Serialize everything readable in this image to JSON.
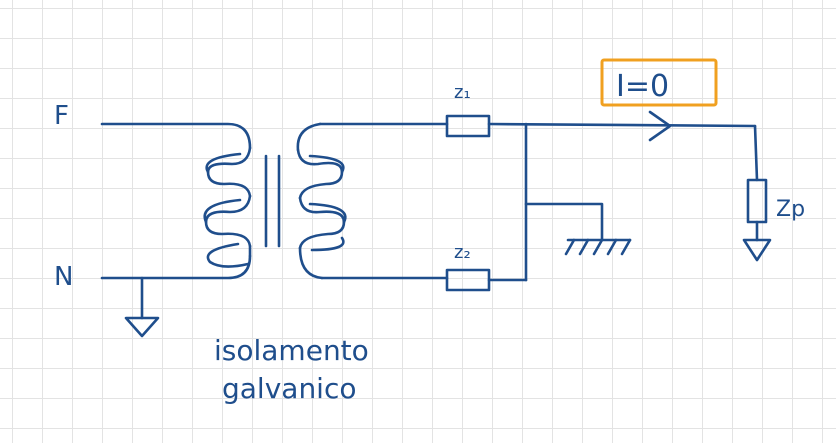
{
  "labels": {
    "phase": "F",
    "neutral": "N",
    "z1": "z₁",
    "z2": "z₂",
    "zp": "Zp",
    "current": "I=0",
    "isolation_line1": "isolamento",
    "isolation_line2": "galvanico"
  },
  "colors": {
    "ink": "#1f4e8c",
    "highlight": "#f0a020",
    "grid": "#e3e3e3"
  }
}
